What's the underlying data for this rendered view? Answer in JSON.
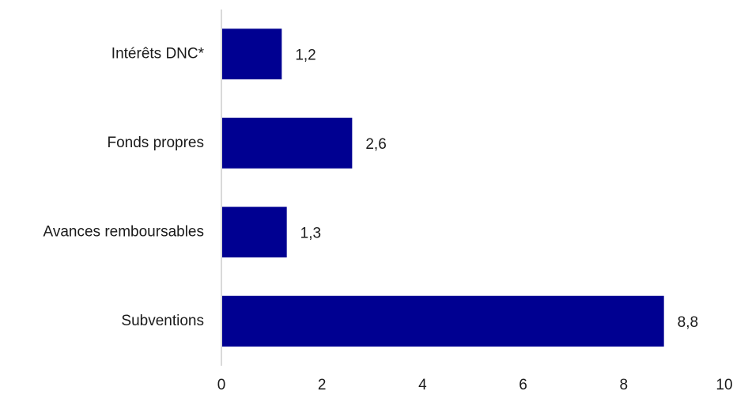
{
  "chart_data": {
    "type": "bar",
    "orientation": "horizontal",
    "categories": [
      "Intérêts DNC*",
      "Fonds propres ",
      "Avances remboursables",
      "Subventions"
    ],
    "values": [
      1.2,
      2.6,
      1.3,
      8.8
    ],
    "value_labels": [
      "1,2",
      "2,6",
      "1,3",
      "8,8"
    ],
    "xlim": [
      0,
      10
    ],
    "xticks": [
      0,
      2,
      4,
      6,
      8,
      10
    ],
    "xtick_labels": [
      "0",
      "2",
      "4",
      "6",
      "8",
      "10"
    ],
    "grid": false,
    "bar_color": "#000091",
    "axis_color": "#d9d9d9"
  }
}
